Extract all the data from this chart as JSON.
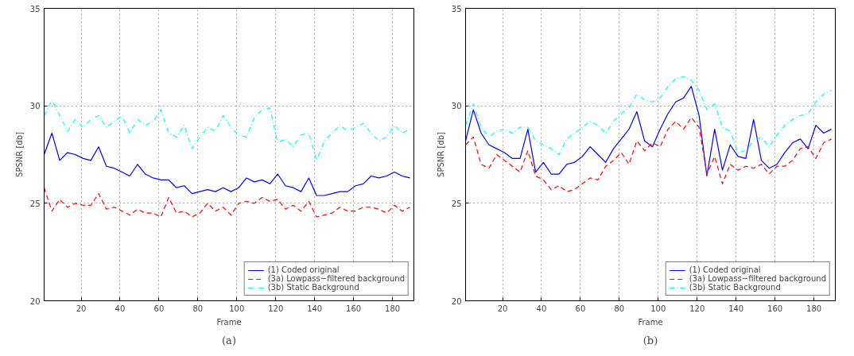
{
  "chart_data": [
    {
      "type": "line",
      "xlabel": "Frame",
      "ylabel": "SPSNR [db]",
      "annotations": [
        "(a)"
      ],
      "x": [
        1,
        5,
        9,
        13,
        17,
        21,
        25,
        29,
        33,
        37,
        41,
        45,
        49,
        53,
        57,
        61,
        65,
        69,
        73,
        77,
        81,
        85,
        89,
        93,
        97,
        101,
        105,
        109,
        113,
        117,
        121,
        125,
        129,
        133,
        137,
        141,
        145,
        149,
        153,
        157,
        161,
        165,
        169,
        173,
        177,
        181,
        185,
        189
      ],
      "xlim": [
        1,
        191
      ],
      "ylim": [
        20,
        35
      ],
      "xticks": [
        20,
        40,
        60,
        80,
        100,
        120,
        140,
        160,
        180
      ],
      "yticks": [
        20,
        25,
        30,
        35
      ],
      "grid": true,
      "legend": "bottom right",
      "series": [
        {
          "name": "(1) Coded original",
          "color": "#0000ff",
          "line_style": "solid",
          "values": [
            27.5,
            28.6,
            27.2,
            27.6,
            27.5,
            27.3,
            27.2,
            27.9,
            26.9,
            26.8,
            26.6,
            26.4,
            27.0,
            26.5,
            26.3,
            26.2,
            26.2,
            25.8,
            25.9,
            25.5,
            25.6,
            25.7,
            25.6,
            25.8,
            25.6,
            25.8,
            26.3,
            26.1,
            26.2,
            26.0,
            26.5,
            25.9,
            25.8,
            25.6,
            26.3,
            25.4,
            25.4,
            25.5,
            25.6,
            25.6,
            25.9,
            26.0,
            26.4,
            26.3,
            26.4,
            26.6,
            26.4,
            26.3
          ]
        },
        {
          "name": "(3a) Lowpass−filtered background",
          "color": "#ff0000",
          "line_style": "dashed",
          "values": [
            25.8,
            24.6,
            25.2,
            24.8,
            25.0,
            24.9,
            24.9,
            25.5,
            24.7,
            24.8,
            24.6,
            24.4,
            24.7,
            24.5,
            24.5,
            24.3,
            25.3,
            24.5,
            24.6,
            24.3,
            24.5,
            25.0,
            24.6,
            24.8,
            24.4,
            25.0,
            25.1,
            25.0,
            25.3,
            25.1,
            25.2,
            24.7,
            24.9,
            24.6,
            25.1,
            24.3,
            24.4,
            24.5,
            24.8,
            24.6,
            24.6,
            24.8,
            24.8,
            24.7,
            24.5,
            24.9,
            24.6,
            24.8
          ]
        },
        {
          "name": "(3b) Static Background",
          "color": "#00ffff",
          "line_style": "dashdot",
          "values": [
            29.5,
            30.3,
            29.5,
            28.7,
            29.3,
            28.9,
            29.3,
            29.5,
            28.9,
            29.2,
            29.5,
            28.6,
            29.3,
            29.0,
            29.2,
            29.8,
            28.6,
            28.4,
            29.0,
            27.8,
            28.4,
            28.9,
            28.7,
            29.5,
            28.9,
            28.5,
            28.4,
            29.4,
            29.8,
            29.9,
            28.1,
            28.3,
            27.9,
            28.5,
            28.6,
            27.2,
            28.2,
            28.6,
            29.0,
            28.7,
            28.9,
            29.1,
            28.6,
            28.2,
            28.4,
            29.0,
            28.6,
            28.8
          ]
        }
      ]
    },
    {
      "type": "line",
      "xlabel": "Frame",
      "ylabel": "SPSNR [db]",
      "annotations": [
        "(b)"
      ],
      "x": [
        1,
        5,
        9,
        13,
        17,
        21,
        25,
        29,
        33,
        37,
        41,
        45,
        49,
        53,
        57,
        61,
        65,
        69,
        73,
        77,
        81,
        85,
        89,
        93,
        97,
        101,
        105,
        109,
        113,
        117,
        121,
        125,
        129,
        133,
        137,
        141,
        145,
        149,
        153,
        157,
        161,
        165,
        169,
        173,
        177,
        181,
        185,
        189
      ],
      "xlim": [
        1,
        191
      ],
      "ylim": [
        20,
        35
      ],
      "xticks": [
        20,
        40,
        60,
        80,
        100,
        120,
        140,
        160,
        180
      ],
      "yticks": [
        20,
        25,
        30,
        35
      ],
      "grid": true,
      "legend": "bottom right",
      "series": [
        {
          "name": "(1) Coded original",
          "color": "#0000ff",
          "line_style": "solid",
          "values": [
            28.2,
            29.8,
            28.6,
            28.0,
            27.8,
            27.6,
            27.3,
            27.3,
            28.8,
            26.6,
            27.1,
            26.5,
            26.5,
            27.0,
            27.1,
            27.4,
            27.9,
            27.5,
            27.1,
            27.8,
            28.3,
            28.8,
            29.7,
            28.2,
            27.9,
            28.8,
            29.6,
            30.2,
            30.4,
            31.0,
            29.5,
            26.4,
            28.8,
            26.7,
            28.0,
            27.4,
            27.3,
            29.3,
            27.2,
            26.8,
            27.0,
            27.6,
            28.1,
            28.3,
            27.8,
            29.0,
            28.6,
            28.8
          ]
        },
        {
          "name": "(3a) Lowpass−filtered background",
          "color": "#ff0000",
          "line_style": "dashed",
          "values": [
            28.0,
            28.4,
            27.0,
            26.8,
            27.5,
            27.2,
            26.9,
            26.6,
            27.7,
            26.4,
            26.2,
            25.7,
            25.9,
            25.6,
            25.7,
            26.0,
            26.3,
            26.2,
            26.9,
            27.2,
            27.6,
            27.0,
            28.2,
            27.7,
            28.1,
            27.9,
            28.8,
            29.2,
            28.8,
            29.4,
            28.9,
            26.5,
            27.4,
            26.0,
            27.0,
            26.7,
            26.9,
            26.8,
            27.0,
            26.5,
            26.9,
            26.9,
            27.2,
            27.8,
            27.9,
            27.3,
            28.1,
            28.3
          ]
        },
        {
          "name": "(3b) Static Background",
          "color": "#00ffff",
          "line_style": "dashdot",
          "values": [
            29.0,
            30.1,
            28.9,
            28.4,
            28.7,
            28.8,
            28.6,
            28.9,
            28.9,
            28.2,
            28.0,
            27.8,
            27.5,
            28.3,
            28.6,
            28.9,
            29.2,
            29.0,
            28.6,
            29.2,
            29.6,
            29.9,
            30.6,
            30.3,
            30.2,
            30.4,
            31.0,
            31.4,
            31.5,
            31.3,
            30.8,
            29.8,
            30.1,
            28.9,
            28.7,
            27.6,
            27.7,
            28.2,
            28.4,
            27.9,
            28.5,
            29.0,
            29.3,
            29.5,
            29.6,
            30.2,
            30.6,
            30.8
          ]
        }
      ]
    }
  ]
}
